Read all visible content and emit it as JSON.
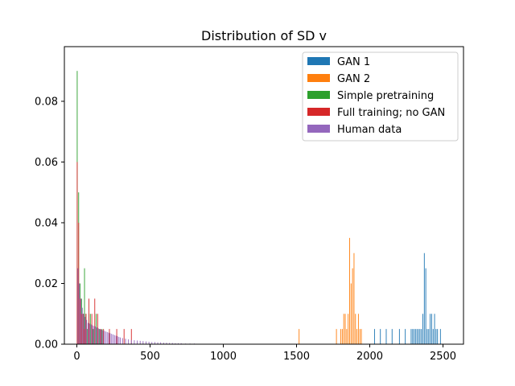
{
  "chart_data": {
    "type": "bar",
    "title": "Distribution of SD v",
    "xlabel": "",
    "ylabel": "",
    "xlim": [
      -85,
      2640
    ],
    "ylim": [
      0,
      0.098
    ],
    "x_ticks": [
      0,
      500,
      1000,
      1500,
      2000,
      2500
    ],
    "x_tick_labels": [
      "0",
      "500",
      "1000",
      "1500",
      "2000",
      "2500"
    ],
    "y_ticks": [
      0,
      0.02,
      0.04,
      0.06,
      0.08
    ],
    "y_tick_labels": [
      "0.00",
      "0.02",
      "0.04",
      "0.06",
      "0.08"
    ],
    "legend_position": "top-right",
    "grid": false,
    "series": [
      {
        "name": "GAN 1",
        "color": "#1f77b4",
        "bins": [
          {
            "x": 2030,
            "y": 0.005
          },
          {
            "x": 2070,
            "y": 0.005
          },
          {
            "x": 2110,
            "y": 0.005
          },
          {
            "x": 2150,
            "y": 0.005
          },
          {
            "x": 2200,
            "y": 0.005
          },
          {
            "x": 2240,
            "y": 0.005
          },
          {
            "x": 2280,
            "y": 0.005
          },
          {
            "x": 2290,
            "y": 0.005
          },
          {
            "x": 2300,
            "y": 0.005
          },
          {
            "x": 2310,
            "y": 0.005
          },
          {
            "x": 2320,
            "y": 0.005
          },
          {
            "x": 2330,
            "y": 0.005
          },
          {
            "x": 2340,
            "y": 0.005
          },
          {
            "x": 2350,
            "y": 0.005
          },
          {
            "x": 2360,
            "y": 0.01
          },
          {
            "x": 2370,
            "y": 0.03
          },
          {
            "x": 2380,
            "y": 0.025
          },
          {
            "x": 2390,
            "y": 0.005
          },
          {
            "x": 2400,
            "y": 0.005
          },
          {
            "x": 2410,
            "y": 0.01
          },
          {
            "x": 2420,
            "y": 0.01
          },
          {
            "x": 2430,
            "y": 0.005
          },
          {
            "x": 2440,
            "y": 0.01
          },
          {
            "x": 2450,
            "y": 0.005
          },
          {
            "x": 2460,
            "y": 0.005
          },
          {
            "x": 2480,
            "y": 0.005
          }
        ]
      },
      {
        "name": "GAN 2",
        "color": "#ff7f0e",
        "bins": [
          {
            "x": 1515,
            "y": 0.005
          },
          {
            "x": 1770,
            "y": 0.005
          },
          {
            "x": 1800,
            "y": 0.005
          },
          {
            "x": 1810,
            "y": 0.005
          },
          {
            "x": 1820,
            "y": 0.01
          },
          {
            "x": 1830,
            "y": 0.01
          },
          {
            "x": 1840,
            "y": 0.005
          },
          {
            "x": 1850,
            "y": 0.01
          },
          {
            "x": 1860,
            "y": 0.035
          },
          {
            "x": 1870,
            "y": 0.02
          },
          {
            "x": 1880,
            "y": 0.025
          },
          {
            "x": 1890,
            "y": 0.03
          },
          {
            "x": 1900,
            "y": 0.01
          },
          {
            "x": 1910,
            "y": 0.005
          },
          {
            "x": 1920,
            "y": 0.01
          },
          {
            "x": 1930,
            "y": 0.005
          },
          {
            "x": 1940,
            "y": 0.005
          }
        ]
      },
      {
        "name": "Simple pretraining",
        "color": "#2ca02c",
        "bins": [
          {
            "x": 0,
            "y": 0.09
          },
          {
            "x": 10,
            "y": 0.05
          },
          {
            "x": 20,
            "y": 0.02
          },
          {
            "x": 30,
            "y": 0.015
          },
          {
            "x": 40,
            "y": 0.01
          },
          {
            "x": 50,
            "y": 0.025
          },
          {
            "x": 60,
            "y": 0.01
          },
          {
            "x": 70,
            "y": 0.005
          },
          {
            "x": 80,
            "y": 0.01
          },
          {
            "x": 90,
            "y": 0.01
          },
          {
            "x": 110,
            "y": 0.005
          },
          {
            "x": 130,
            "y": 0.01
          },
          {
            "x": 150,
            "y": 0.005
          },
          {
            "x": 170,
            "y": 0.005
          }
        ]
      },
      {
        "name": "Full training; no GAN",
        "color": "#d62728",
        "bins": [
          {
            "x": 0,
            "y": 0.06
          },
          {
            "x": 10,
            "y": 0.04
          },
          {
            "x": 20,
            "y": 0.015
          },
          {
            "x": 30,
            "y": 0.01
          },
          {
            "x": 40,
            "y": 0.01
          },
          {
            "x": 50,
            "y": 0.005
          },
          {
            "x": 60,
            "y": 0.01
          },
          {
            "x": 80,
            "y": 0.015
          },
          {
            "x": 100,
            "y": 0.01
          },
          {
            "x": 120,
            "y": 0.015
          },
          {
            "x": 140,
            "y": 0.01
          },
          {
            "x": 160,
            "y": 0.005
          },
          {
            "x": 180,
            "y": 0.005
          },
          {
            "x": 220,
            "y": 0.005
          },
          {
            "x": 270,
            "y": 0.005
          },
          {
            "x": 320,
            "y": 0.005
          },
          {
            "x": 370,
            "y": 0.005
          }
        ]
      },
      {
        "name": "Human data",
        "color": "#9467bd",
        "bins": [
          {
            "x": 5,
            "y": 0.025
          },
          {
            "x": 15,
            "y": 0.02
          },
          {
            "x": 25,
            "y": 0.015
          },
          {
            "x": 35,
            "y": 0.012
          },
          {
            "x": 45,
            "y": 0.01
          },
          {
            "x": 55,
            "y": 0.009
          },
          {
            "x": 65,
            "y": 0.008
          },
          {
            "x": 75,
            "y": 0.007
          },
          {
            "x": 85,
            "y": 0.0068
          },
          {
            "x": 95,
            "y": 0.0065
          },
          {
            "x": 105,
            "y": 0.0062
          },
          {
            "x": 115,
            "y": 0.006
          },
          {
            "x": 125,
            "y": 0.0058
          },
          {
            "x": 135,
            "y": 0.0055
          },
          {
            "x": 145,
            "y": 0.0052
          },
          {
            "x": 155,
            "y": 0.005
          },
          {
            "x": 165,
            "y": 0.0048
          },
          {
            "x": 175,
            "y": 0.0046
          },
          {
            "x": 185,
            "y": 0.0044
          },
          {
            "x": 195,
            "y": 0.0042
          },
          {
            "x": 205,
            "y": 0.004
          },
          {
            "x": 215,
            "y": 0.0038
          },
          {
            "x": 225,
            "y": 0.0036
          },
          {
            "x": 235,
            "y": 0.0034
          },
          {
            "x": 245,
            "y": 0.0032
          },
          {
            "x": 255,
            "y": 0.003
          },
          {
            "x": 265,
            "y": 0.0028
          },
          {
            "x": 275,
            "y": 0.0026
          },
          {
            "x": 285,
            "y": 0.0024
          },
          {
            "x": 295,
            "y": 0.0022
          },
          {
            "x": 310,
            "y": 0.002
          },
          {
            "x": 330,
            "y": 0.0018
          },
          {
            "x": 350,
            "y": 0.0016
          },
          {
            "x": 370,
            "y": 0.0014
          },
          {
            "x": 390,
            "y": 0.0013
          },
          {
            "x": 410,
            "y": 0.0012
          },
          {
            "x": 430,
            "y": 0.0011
          },
          {
            "x": 450,
            "y": 0.001
          },
          {
            "x": 470,
            "y": 0.0009
          },
          {
            "x": 490,
            "y": 0.0008
          },
          {
            "x": 510,
            "y": 0.0007
          },
          {
            "x": 530,
            "y": 0.0007
          },
          {
            "x": 550,
            "y": 0.0006
          },
          {
            "x": 570,
            "y": 0.0006
          },
          {
            "x": 590,
            "y": 0.0005
          },
          {
            "x": 610,
            "y": 0.0005
          },
          {
            "x": 630,
            "y": 0.0004
          },
          {
            "x": 650,
            "y": 0.0004
          },
          {
            "x": 670,
            "y": 0.0003
          },
          {
            "x": 690,
            "y": 0.0003
          },
          {
            "x": 710,
            "y": 0.0003
          },
          {
            "x": 740,
            "y": 0.0002
          },
          {
            "x": 770,
            "y": 0.0002
          },
          {
            "x": 800,
            "y": 0.0002
          },
          {
            "x": 830,
            "y": 0.0001
          },
          {
            "x": 860,
            "y": 0.0001
          },
          {
            "x": 900,
            "y": 0.0001
          },
          {
            "x": 950,
            "y": 0.0001
          }
        ]
      }
    ]
  }
}
